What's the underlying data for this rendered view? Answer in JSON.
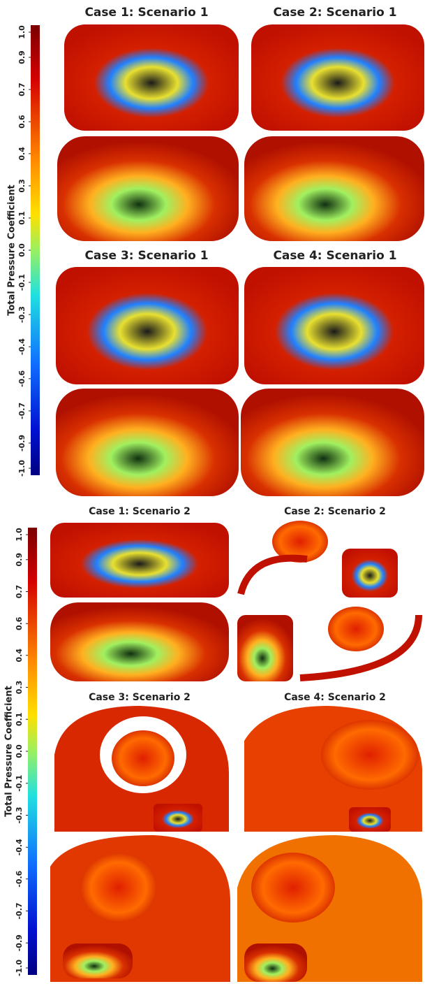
{
  "sections": [
    {
      "titles": [
        "Case 1: Scenario 1",
        "Case 2: Scenario 1",
        "Case 3: Scenario 1",
        "Case 4: Scenario 1"
      ],
      "colorbar": {
        "label": "Total Pressure Coefficient",
        "range": [
          -1,
          1
        ],
        "ticks": [
          {
            "value": 1,
            "label": "1.0"
          },
          {
            "value": 0.857,
            "label": "0.9"
          },
          {
            "value": 0.714,
            "label": "0.7"
          },
          {
            "value": 0.571,
            "label": "0.6"
          },
          {
            "value": 0.429,
            "label": "0.4"
          },
          {
            "value": 0.286,
            "label": "0.3"
          },
          {
            "value": 0.143,
            "label": "0.1"
          },
          {
            "value": 0,
            "label": "0.0"
          },
          {
            "value": -0.143,
            "label": "-0.1"
          },
          {
            "value": -0.286,
            "label": "-0.3"
          },
          {
            "value": -0.429,
            "label": "-0.4"
          },
          {
            "value": -0.571,
            "label": "-0.6"
          },
          {
            "value": -0.714,
            "label": "-0.7"
          },
          {
            "value": -0.857,
            "label": "-0.9"
          },
          {
            "value": -1,
            "label": "-1.0"
          }
        ]
      }
    },
    {
      "titles": [
        "Case 1: Scenario 2",
        "Case 2: Scenario 2",
        "Case 3: Scenario 2",
        "Case 4: Scenario 2"
      ],
      "colorbar": {
        "label": "Total Pressure Coefficient",
        "range": [
          -1,
          1
        ],
        "ticks": [
          {
            "value": 1,
            "label": "1.0"
          },
          {
            "value": 0.857,
            "label": "0.9"
          },
          {
            "value": 0.714,
            "label": "0.7"
          },
          {
            "value": 0.571,
            "label": "0.6"
          },
          {
            "value": 0.429,
            "label": "0.4"
          },
          {
            "value": 0.286,
            "label": "0.3"
          },
          {
            "value": 0.143,
            "label": "0.1"
          },
          {
            "value": 0,
            "label": "0.0"
          },
          {
            "value": -0.143,
            "label": "-0.1"
          },
          {
            "value": -0.286,
            "label": "-0.3"
          },
          {
            "value": -0.429,
            "label": "-0.4"
          },
          {
            "value": -0.571,
            "label": "-0.6"
          },
          {
            "value": -0.714,
            "label": "-0.7"
          },
          {
            "value": -0.857,
            "label": "-0.9"
          },
          {
            "value": -1,
            "label": "-1.0"
          }
        ]
      }
    }
  ]
}
